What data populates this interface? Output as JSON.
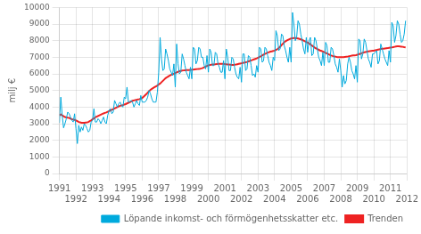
{
  "chart_data": {
    "type": "line",
    "ylabel": "milj €",
    "ylim": [
      0,
      10000
    ],
    "yticks": [
      0,
      1000,
      2000,
      3000,
      4000,
      5000,
      6000,
      7000,
      8000,
      9000,
      10000
    ],
    "xlim": [
      1991,
      2012
    ],
    "xticks": [
      1991,
      1992,
      1993,
      1994,
      1995,
      1996,
      1997,
      1998,
      1999,
      2000,
      2001,
      2002,
      2003,
      2004,
      2005,
      2006,
      2007,
      2008,
      2009,
      2010,
      2011,
      2012
    ],
    "grid": true,
    "legend": "lower right",
    "x": [
      1991,
      1991.0833333333333,
      1991.1666666666667,
      1991.25,
      1991.3333333333333,
      1991.4166666666667,
      1991.5,
      1991.5833333333333,
      1991.6666666666667,
      1991.75,
      1991.8333333333333,
      1991.9166666666667,
      1992,
      1992.0833333333333,
      1992.1666666666667,
      1992.25,
      1992.3333333333333,
      1992.4166666666667,
      1992.5,
      1992.5833333333333,
      1992.6666666666667,
      1992.75,
      1992.8333333333333,
      1992.9166666666667,
      1993,
      1993.0833333333333,
      1993.1666666666667,
      1993.25,
      1993.3333333333333,
      1993.4166666666667,
      1993.5,
      1993.5833333333333,
      1993.6666666666667,
      1993.75,
      1993.8333333333333,
      1993.9166666666667,
      1994,
      1994.0833333333333,
      1994.1666666666667,
      1994.25,
      1994.3333333333333,
      1994.4166666666667,
      1994.5,
      1994.5833333333333,
      1994.6666666666667,
      1994.75,
      1994.8333333333333,
      1994.9166666666667,
      1995,
      1995.0833333333333,
      1995.1666666666667,
      1995.25,
      1995.3333333333333,
      1995.4166666666667,
      1995.5,
      1995.5833333333333,
      1995.6666666666667,
      1995.75,
      1995.8333333333333,
      1995.9166666666667,
      1996,
      1996.0833333333333,
      1996.1666666666667,
      1996.25,
      1996.3333333333333,
      1996.4166666666667,
      1996.5,
      1996.5833333333333,
      1996.6666666666667,
      1996.75,
      1996.8333333333333,
      1996.9166666666667,
      1997,
      1997.0833333333333,
      1997.1666666666667,
      1997.25,
      1997.3333333333333,
      1997.4166666666667,
      1997.5,
      1997.5833333333333,
      1997.6666666666667,
      1997.75,
      1997.8333333333333,
      1997.9166666666667,
      1998,
      1998.0833333333333,
      1998.1666666666667,
      1998.25,
      1998.3333333333333,
      1998.4166666666667,
      1998.5,
      1998.5833333333333,
      1998.6666666666667,
      1998.75,
      1998.8333333333333,
      1998.9166666666667,
      1999,
      1999.0833333333333,
      1999.1666666666667,
      1999.25,
      1999.3333333333333,
      1999.4166666666667,
      1999.5,
      1999.5833333333333,
      1999.6666666666667,
      1999.75,
      1999.8333333333333,
      1999.9166666666667,
      2000,
      2000.0833333333333,
      2000.1666666666667,
      2000.25,
      2000.3333333333333,
      2000.4166666666667,
      2000.5,
      2000.5833333333333,
      2000.6666666666667,
      2000.75,
      2000.8333333333333,
      2000.9166666666667,
      2001,
      2001.0833333333333,
      2001.1666666666667,
      2001.25,
      2001.3333333333333,
      2001.4166666666667,
      2001.5,
      2001.5833333333333,
      2001.6666666666667,
      2001.75,
      2001.8333333333333,
      2001.9166666666667,
      2002,
      2002.0833333333333,
      2002.1666666666667,
      2002.25,
      2002.3333333333333,
      2002.4166666666667,
      2002.5,
      2002.5833333333333,
      2002.6666666666667,
      2002.75,
      2002.8333333333333,
      2002.9166666666667,
      2003,
      2003.0833333333333,
      2003.1666666666667,
      2003.25,
      2003.3333333333333,
      2003.4166666666667,
      2003.5,
      2003.5833333333333,
      2003.6666666666667,
      2003.75,
      2003.8333333333333,
      2003.9166666666667,
      2004,
      2004.0833333333333,
      2004.1666666666667,
      2004.25,
      2004.3333333333333,
      2004.4166666666667,
      2004.5,
      2004.5833333333333,
      2004.6666666666667,
      2004.75,
      2004.8333333333333,
      2004.9166666666667,
      2005,
      2005.0833333333333,
      2005.1666666666667,
      2005.25,
      2005.3333333333333,
      2005.4166666666667,
      2005.5,
      2005.5833333333333,
      2005.6666666666667,
      2005.75,
      2005.8333333333333,
      2005.9166666666667,
      2006,
      2006.0833333333333,
      2006.1666666666667,
      2006.25,
      2006.3333333333333,
      2006.4166666666667,
      2006.5,
      2006.5833333333333,
      2006.6666666666667,
      2006.75,
      2006.8333333333333,
      2006.9166666666667,
      2007,
      2007.0833333333333,
      2007.1666666666667,
      2007.25,
      2007.3333333333333,
      2007.4166666666667,
      2007.5,
      2007.5833333333333,
      2007.6666666666667,
      2007.75,
      2007.8333333333333,
      2007.9166666666667,
      2008,
      2008.0833333333333,
      2008.1666666666667,
      2008.25,
      2008.3333333333333,
      2008.4166666666667,
      2008.5,
      2008.5833333333333,
      2008.6666666666667,
      2008.75,
      2008.8333333333333,
      2008.9166666666667,
      2009,
      2009.0833333333333,
      2009.1666666666667,
      2009.25,
      2009.3333333333333,
      2009.4166666666667,
      2009.5,
      2009.5833333333333,
      2009.6666666666667,
      2009.75,
      2009.8333333333333,
      2009.9166666666667,
      2010,
      2010.0833333333333,
      2010.1666666666667,
      2010.25,
      2010.3333333333333,
      2010.4166666666667,
      2010.5,
      2010.5833333333333,
      2010.6666666666667,
      2010.75,
      2010.8333333333333,
      2010.9166666666667,
      2011,
      2011.0833333333333,
      2011.1666666666667,
      2011.25,
      2011.3333333333333,
      2011.4166666666667,
      2011.5,
      2011.5833333333333,
      2011.6666666666667,
      2011.75,
      2011.8333333333333,
      2011.9166666666667
    ],
    "series": [
      {
        "name": "Löpande inkomst- och förmögenhetsskatter etc.",
        "color": "#00AADD",
        "values": [
          3050,
          4600,
          3500,
          2750,
          3000,
          3300,
          3700,
          3600,
          3400,
          3200,
          3100,
          3600,
          2700,
          1800,
          2900,
          2500,
          2800,
          2600,
          3000,
          2900,
          2700,
          2500,
          2600,
          3100,
          3200,
          3900,
          3100,
          3100,
          3300,
          3200,
          3000,
          3200,
          3400,
          3100,
          3000,
          3500,
          3800,
          3900,
          3600,
          3700,
          4400,
          4200,
          4000,
          4200,
          4300,
          4100,
          4000,
          4600,
          4500,
          5200,
          4300,
          4300,
          4400,
          4300,
          4000,
          4200,
          4400,
          4200,
          4100,
          4700,
          4300,
          4300,
          4300,
          4400,
          4600,
          5000,
          4800,
          4500,
          4300,
          4300,
          4300,
          4900,
          6100,
          8200,
          6900,
          6200,
          6300,
          7500,
          7200,
          6800,
          6300,
          6100,
          5900,
          6600,
          5200,
          7800,
          6600,
          6000,
          6100,
          7200,
          6900,
          6500,
          6100,
          5900,
          5700,
          6400,
          5700,
          7600,
          7500,
          6600,
          6800,
          7600,
          7500,
          7000,
          7000,
          6500,
          6300,
          7100,
          6100,
          7500,
          7300,
          6500,
          6500,
          7300,
          7200,
          6600,
          6400,
          6100,
          6100,
          6800,
          5700,
          7500,
          7000,
          6200,
          6200,
          7000,
          6900,
          6400,
          6000,
          5800,
          5700,
          6400,
          5500,
          7200,
          7200,
          6200,
          6300,
          7100,
          7000,
          6500,
          5900,
          6000,
          5800,
          6500,
          6100,
          7600,
          7500,
          6700,
          6800,
          7600,
          7500,
          7100,
          6700,
          6500,
          6200,
          7000,
          6800,
          8600,
          8300,
          7400,
          7500,
          8400,
          8300,
          7700,
          7400,
          7000,
          6700,
          7600,
          6700,
          9700,
          9000,
          8000,
          8200,
          9200,
          9000,
          8400,
          8000,
          7500,
          7200,
          8200,
          7300,
          8000,
          8200,
          7100,
          7200,
          8200,
          8000,
          7500,
          7000,
          6800,
          6500,
          7300,
          6500,
          7900,
          7700,
          6700,
          6700,
          7600,
          7500,
          7100,
          6600,
          6400,
          6100,
          6900,
          6200,
          5200,
          5900,
          5400,
          5600,
          6600,
          7000,
          6700,
          6200,
          6000,
          5700,
          6500,
          5500,
          8100,
          8000,
          6900,
          7200,
          8100,
          7900,
          7400,
          6900,
          6700,
          6400,
          7200,
          7200,
          7300,
          7400,
          6600,
          6800,
          7800,
          7500,
          7200,
          6900,
          6700,
          6500,
          7400,
          6700,
          9100,
          8900,
          7900,
          8300,
          9200,
          9000,
          8400,
          7900,
          8000,
          8400,
          9200
        ]
      },
      {
        "name": "Trenden",
        "color": "#EE2222",
        "values": [
          3500,
          3550,
          3500,
          3450,
          3400,
          3380,
          3360,
          3350,
          3300,
          3270,
          3250,
          3230,
          3200,
          3150,
          3100,
          3080,
          3060,
          3050,
          3060,
          3070,
          3080,
          3100,
          3150,
          3200,
          3260,
          3320,
          3380,
          3420,
          3460,
          3500,
          3540,
          3580,
          3620,
          3650,
          3680,
          3720,
          3760,
          3800,
          3840,
          3880,
          3920,
          3960,
          4000,
          4040,
          4080,
          4100,
          4120,
          4150,
          4180,
          4220,
          4260,
          4300,
          4340,
          4380,
          4400,
          4420,
          4440,
          4460,
          4480,
          4510,
          4550,
          4620,
          4700,
          4780,
          4870,
          4960,
          5040,
          5100,
          5150,
          5200,
          5250,
          5300,
          5360,
          5420,
          5500,
          5580,
          5660,
          5740,
          5800,
          5850,
          5900,
          5940,
          5970,
          6000,
          6050,
          6090,
          6130,
          6160,
          6180,
          6200,
          6210,
          6220,
          6230,
          6230,
          6230,
          6240,
          6250,
          6260,
          6270,
          6280,
          6290,
          6300,
          6310,
          6330,
          6360,
          6400,
          6440,
          6480,
          6510,
          6530,
          6550,
          6560,
          6570,
          6580,
          6590,
          6600,
          6610,
          6610,
          6610,
          6600,
          6590,
          6580,
          6570,
          6560,
          6550,
          6540,
          6540,
          6550,
          6560,
          6580,
          6600,
          6620,
          6640,
          6660,
          6680,
          6700,
          6720,
          6750,
          6780,
          6810,
          6840,
          6870,
          6900,
          6930,
          6970,
          7010,
          7060,
          7110,
          7160,
          7200,
          7240,
          7280,
          7310,
          7340,
          7360,
          7380,
          7400,
          7440,
          7490,
          7560,
          7640,
          7730,
          7820,
          7900,
          7970,
          8020,
          8060,
          8100,
          8130,
          8150,
          8160,
          8160,
          8150,
          8130,
          8110,
          8080,
          8050,
          8010,
          7970,
          7930,
          7880,
          7830,
          7770,
          7710,
          7650,
          7590,
          7540,
          7490,
          7450,
          7410,
          7380,
          7350,
          7310,
          7270,
          7230,
          7190,
          7150,
          7110,
          7080,
          7060,
          7040,
          7020,
          7010,
          7010,
          7010,
          7010,
          7010,
          7020,
          7030,
          7040,
          7060,
          7080,
          7100,
          7110,
          7120,
          7130,
          7150,
          7180,
          7210,
          7240,
          7270,
          7300,
          7320,
          7340,
          7360,
          7370,
          7380,
          7390,
          7400,
          7420,
          7440,
          7460,
          7480,
          7500,
          7510,
          7520,
          7530,
          7540,
          7550,
          7570,
          7580,
          7590,
          7610,
          7630,
          7650,
          7660,
          7660,
          7650,
          7640,
          7630,
          7610,
          7600
        ]
      }
    ]
  }
}
